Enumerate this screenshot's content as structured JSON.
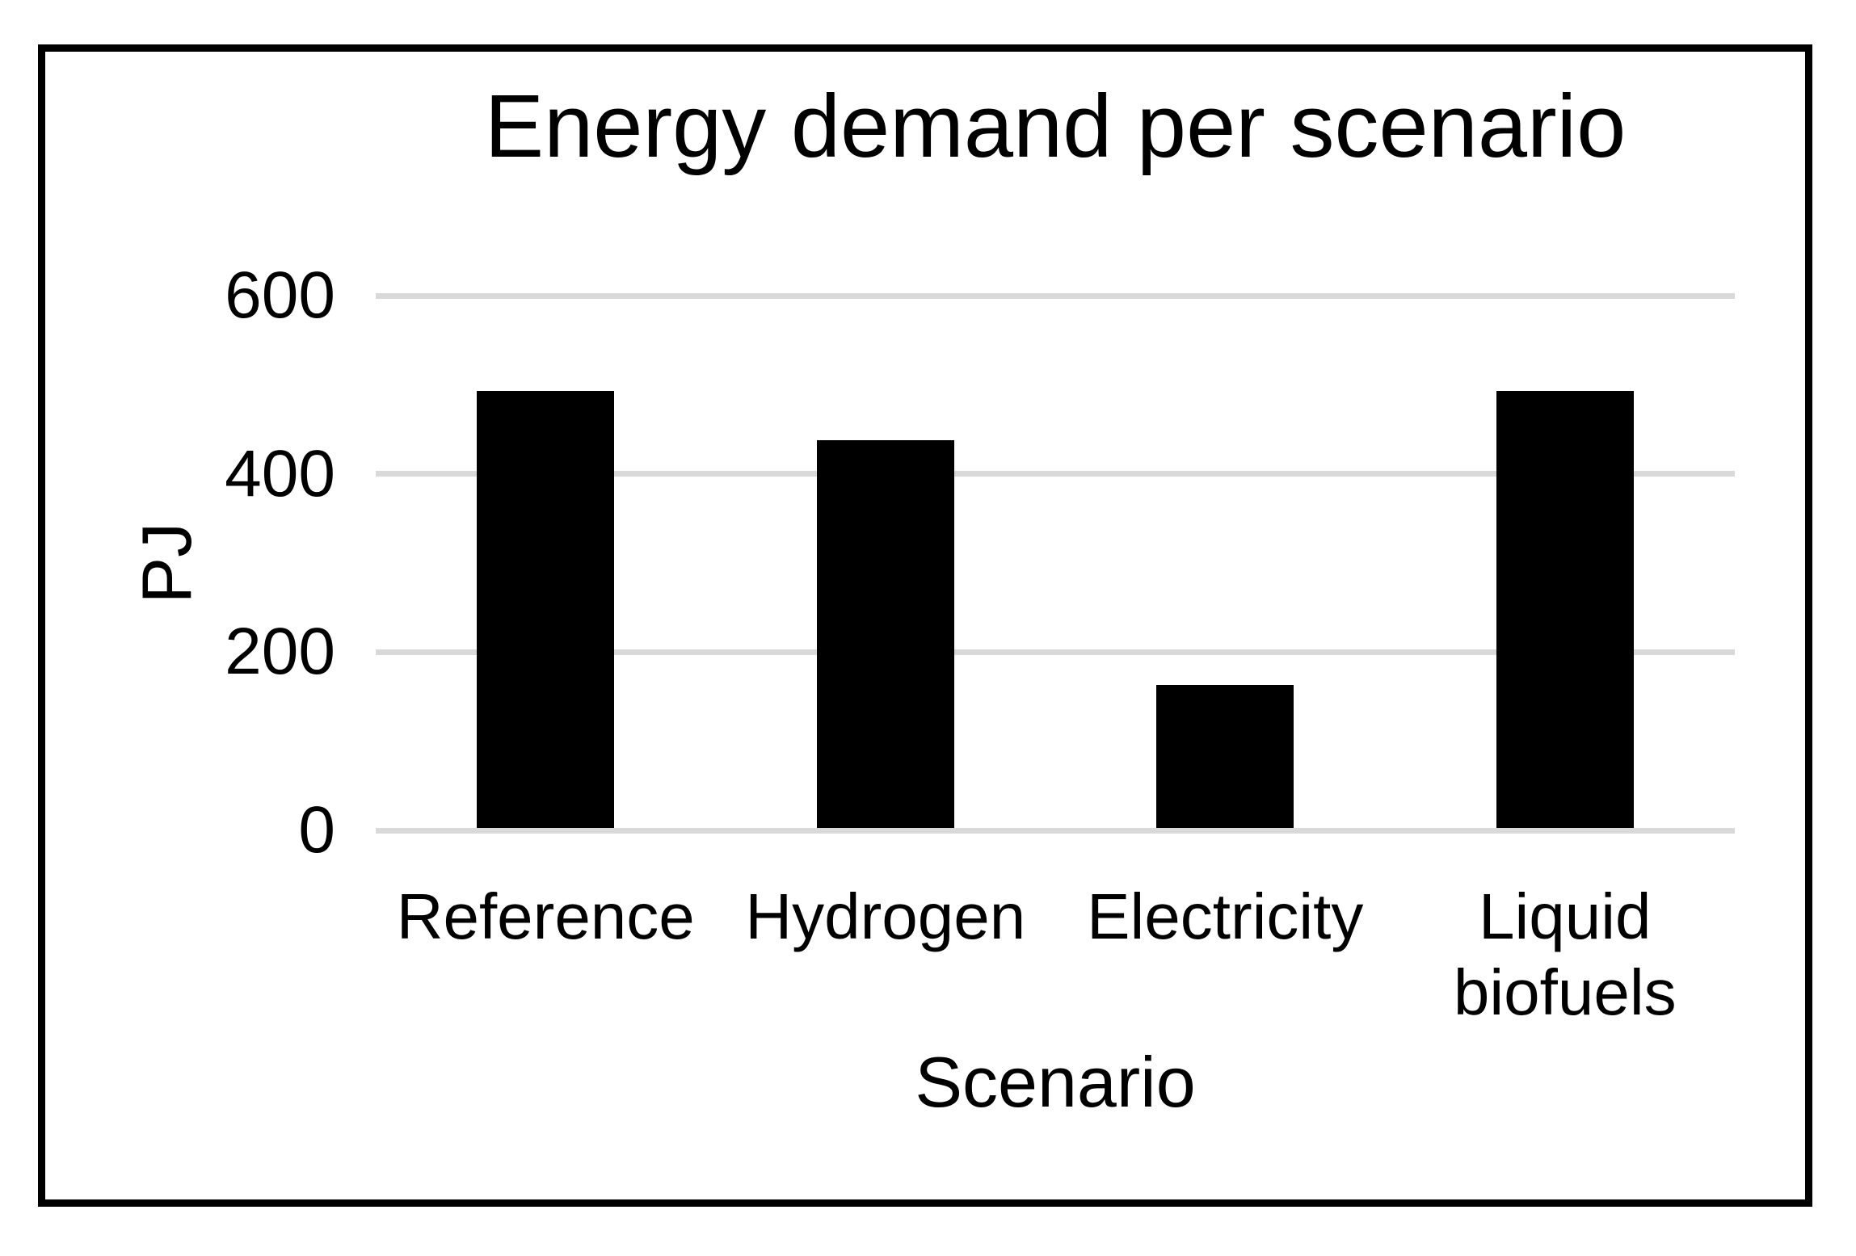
{
  "chart_data": {
    "type": "bar",
    "title": "Energy demand per scenario",
    "categories": [
      "Reference",
      "Hydrogen",
      "Electricity",
      "Liquid biofuels"
    ],
    "values": [
      490,
      435,
      160,
      490
    ],
    "series": [
      {
        "name": "Energy demand",
        "values": [
          490,
          435,
          160,
          490
        ]
      }
    ],
    "xlabel": "Scenario",
    "ylabel": "PJ",
    "yticks": [
      0,
      200,
      400,
      600
    ],
    "ylim": [
      0,
      600
    ],
    "grid": true,
    "legend_position": "none",
    "bar_color": "#000000",
    "gridline_color": "#d9d9d9",
    "frame_border_color": "#000000",
    "text_color": "#000000",
    "background_color": "#ffffff"
  }
}
